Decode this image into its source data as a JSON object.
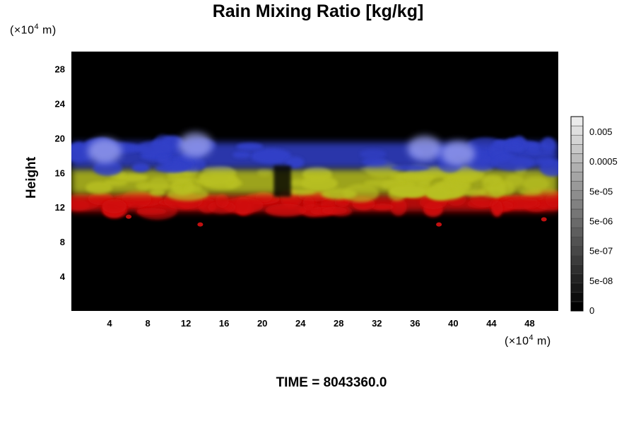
{
  "chart_data": {
    "type": "heatmap",
    "title": "Rain Mixing Ratio [kg/kg]",
    "ylabel": "Height",
    "x_unit": "m",
    "y_unit": "m",
    "x_scale_base": "10",
    "x_scale_exp": "4",
    "y_scale_base": "10",
    "y_scale_exp": "4",
    "xlim": [
      0,
      51
    ],
    "ylim": [
      0,
      30
    ],
    "x_ticks": [
      4,
      8,
      12,
      16,
      20,
      24,
      28,
      32,
      36,
      40,
      44,
      48
    ],
    "y_ticks": [
      4,
      8,
      12,
      16,
      20,
      24,
      28
    ],
    "colorbar": {
      "levels": 21,
      "labels": [
        "0",
        "5e-08",
        "5e-07",
        "5e-06",
        "5e-05",
        "0.0005",
        "0.005"
      ],
      "min_color": "#000000",
      "max_color": "#ffffff"
    },
    "layers": [
      {
        "color": "#d01010",
        "y_bottom": 11.5,
        "y_top": 13.5
      },
      {
        "color": "#b8c020",
        "y_bottom": 13.5,
        "y_top": 16.5
      },
      {
        "color": "#3040c8",
        "y_bottom": 16.5,
        "y_top": 19.5
      }
    ],
    "background_color": "#000000"
  },
  "footer": {
    "time_label": "TIME = 8043360.0"
  }
}
